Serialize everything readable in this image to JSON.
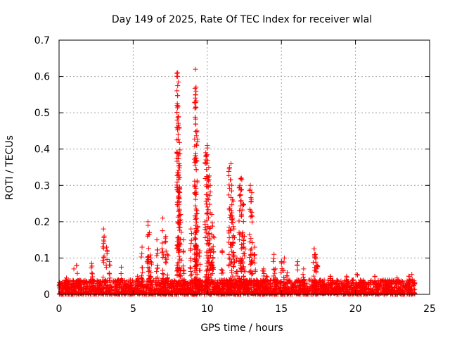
{
  "chart_data": {
    "type": "scatter",
    "title": "Day 149 of 2025, Rate Of TEC Index for receiver wlal",
    "xlabel": "GPS time / hours",
    "ylabel": "ROTI / TECUs",
    "xlim": [
      0,
      25
    ],
    "ylim": [
      0,
      0.7
    ],
    "xticks": [
      0,
      5,
      10,
      15,
      20,
      25
    ],
    "yticks": [
      0,
      0.1,
      0.2,
      0.3,
      0.4,
      0.5,
      0.6,
      0.7
    ],
    "grid": true,
    "marker": "+",
    "color": "#ff0000",
    "baseline": {
      "x_start": 0,
      "x_end": 24,
      "typical_max": 0.04
    },
    "series": [
      {
        "name": "ROTI",
        "x": [
          0.1,
          0.5,
          1.0,
          1.2,
          2.2,
          3.0,
          3.2,
          3.4,
          4.2,
          5.3,
          5.6,
          6.0,
          6.1,
          6.2,
          6.6,
          7.0,
          7.2,
          7.3,
          8.0,
          8.0,
          8.1,
          8.1,
          8.2,
          8.4,
          8.9,
          9.2,
          9.2,
          9.3,
          9.3,
          9.5,
          9.9,
          10.0,
          10.1,
          10.2,
          10.3,
          10.4,
          11.0,
          11.5,
          11.6,
          11.7,
          11.8,
          12.0,
          12.2,
          12.3,
          12.4,
          12.5,
          12.9,
          13.0,
          13.2,
          13.8,
          14.0,
          14.5,
          14.6,
          15.0,
          15.2,
          15.4,
          16.1,
          16.5,
          17.2,
          17.3,
          17.4,
          18.3,
          19.4,
          20.1,
          21.3,
          22.0,
          22.8,
          23.6,
          23.8
        ],
        "y": [
          0.03,
          0.045,
          0.07,
          0.08,
          0.085,
          0.18,
          0.13,
          0.09,
          0.075,
          0.05,
          0.13,
          0.2,
          0.17,
          0.1,
          0.15,
          0.21,
          0.16,
          0.11,
          0.61,
          0.52,
          0.46,
          0.36,
          0.22,
          0.15,
          0.18,
          0.62,
          0.55,
          0.45,
          0.23,
          0.12,
          0.39,
          0.41,
          0.35,
          0.3,
          0.22,
          0.16,
          0.12,
          0.35,
          0.36,
          0.26,
          0.18,
          0.1,
          0.3,
          0.32,
          0.25,
          0.16,
          0.3,
          0.28,
          0.13,
          0.07,
          0.05,
          0.11,
          0.07,
          0.09,
          0.1,
          0.06,
          0.09,
          0.07,
          0.125,
          0.11,
          0.08,
          0.05,
          0.05,
          0.055,
          0.05,
          0.04,
          0.045,
          0.05,
          0.055
        ]
      }
    ]
  }
}
